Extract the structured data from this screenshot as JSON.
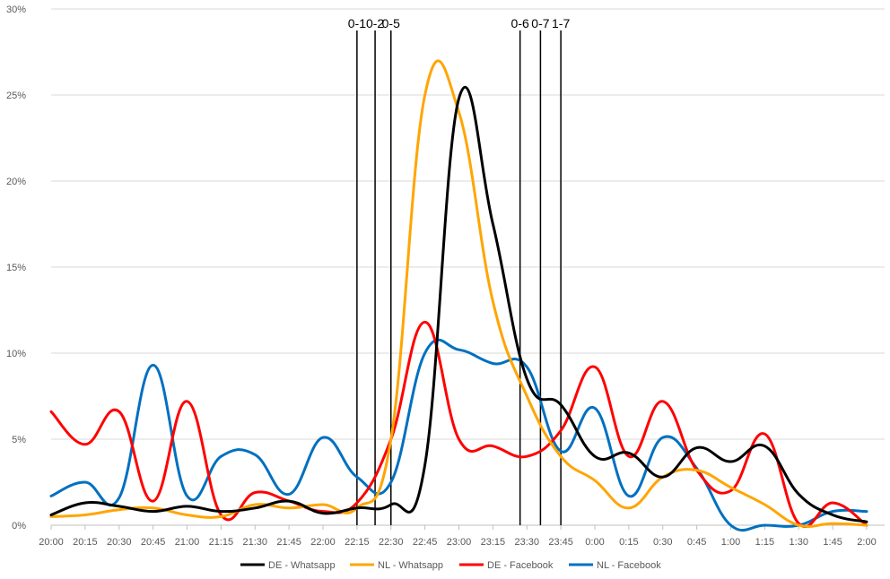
{
  "chart_data": {
    "type": "line",
    "title": "",
    "xlabel": "",
    "ylabel": "",
    "ylim": [
      0,
      30
    ],
    "y_ticks": [
      0,
      5,
      10,
      15,
      20,
      25,
      30
    ],
    "y_tick_labels": [
      "0%",
      "5%",
      "10%",
      "15%",
      "20%",
      "25%",
      "30%"
    ],
    "grid": "horizontal",
    "legend_position": "bottom",
    "categories": [
      "20:00",
      "20:15",
      "20:30",
      "20:45",
      "21:00",
      "21:15",
      "21:30",
      "21:45",
      "22:00",
      "22:15",
      "22:30",
      "22:45",
      "23:00",
      "23:15",
      "23:30",
      "23:45",
      "0:00",
      "0:15",
      "0:30",
      "0:45",
      "1:00",
      "1:15",
      "1:30",
      "1:45",
      "2:00"
    ],
    "series": [
      {
        "name": "DE - Whatsapp",
        "color": "#000000",
        "values": [
          0.6,
          1.3,
          1.1,
          0.8,
          1.1,
          0.8,
          1.0,
          1.4,
          0.7,
          1.0,
          1.2,
          3.5,
          24.8,
          17.5,
          8.5,
          7.0,
          4.0,
          4.2,
          2.8,
          4.5,
          3.7,
          4.6,
          1.8,
          0.6,
          0.2
        ]
      },
      {
        "name": "NL - Whatsapp",
        "color": "#FFA500",
        "values": [
          0.5,
          0.6,
          0.9,
          1.0,
          0.6,
          0.5,
          1.2,
          1.0,
          1.2,
          1.0,
          5.0,
          25.0,
          24.0,
          13.0,
          7.5,
          4.0,
          2.6,
          1.0,
          2.8,
          3.2,
          2.2,
          1.2,
          0.0,
          0.1,
          0.0
        ]
      },
      {
        "name": "DE - Facebook",
        "color": "#FF0000",
        "values": [
          6.6,
          4.7,
          6.6,
          1.4,
          7.2,
          0.6,
          1.9,
          1.4,
          0.8,
          1.3,
          5.0,
          11.8,
          5.0,
          4.6,
          4.0,
          5.5,
          9.2,
          4.0,
          7.2,
          3.2,
          2.0,
          5.3,
          0.1,
          1.3,
          0.0
        ]
      },
      {
        "name": "NL - Facebook",
        "color": "#0070C0",
        "values": [
          1.7,
          2.5,
          1.6,
          9.3,
          1.7,
          4.0,
          4.1,
          1.8,
          5.1,
          2.8,
          2.5,
          10.0,
          10.2,
          9.4,
          9.2,
          4.3,
          6.8,
          1.7,
          5.1,
          3.3,
          0.0,
          0.0,
          0.0,
          0.8,
          0.8
        ]
      }
    ],
    "annotations": [
      {
        "label": "0-1",
        "x": "22:15"
      },
      {
        "label": "0-2",
        "x": "22:23"
      },
      {
        "label": "0-5",
        "x": "22:30"
      },
      {
        "label": "0-6",
        "x": "23:27"
      },
      {
        "label": "0-7",
        "x": "23:36"
      },
      {
        "label": "1-7",
        "x": "23:45"
      }
    ]
  }
}
